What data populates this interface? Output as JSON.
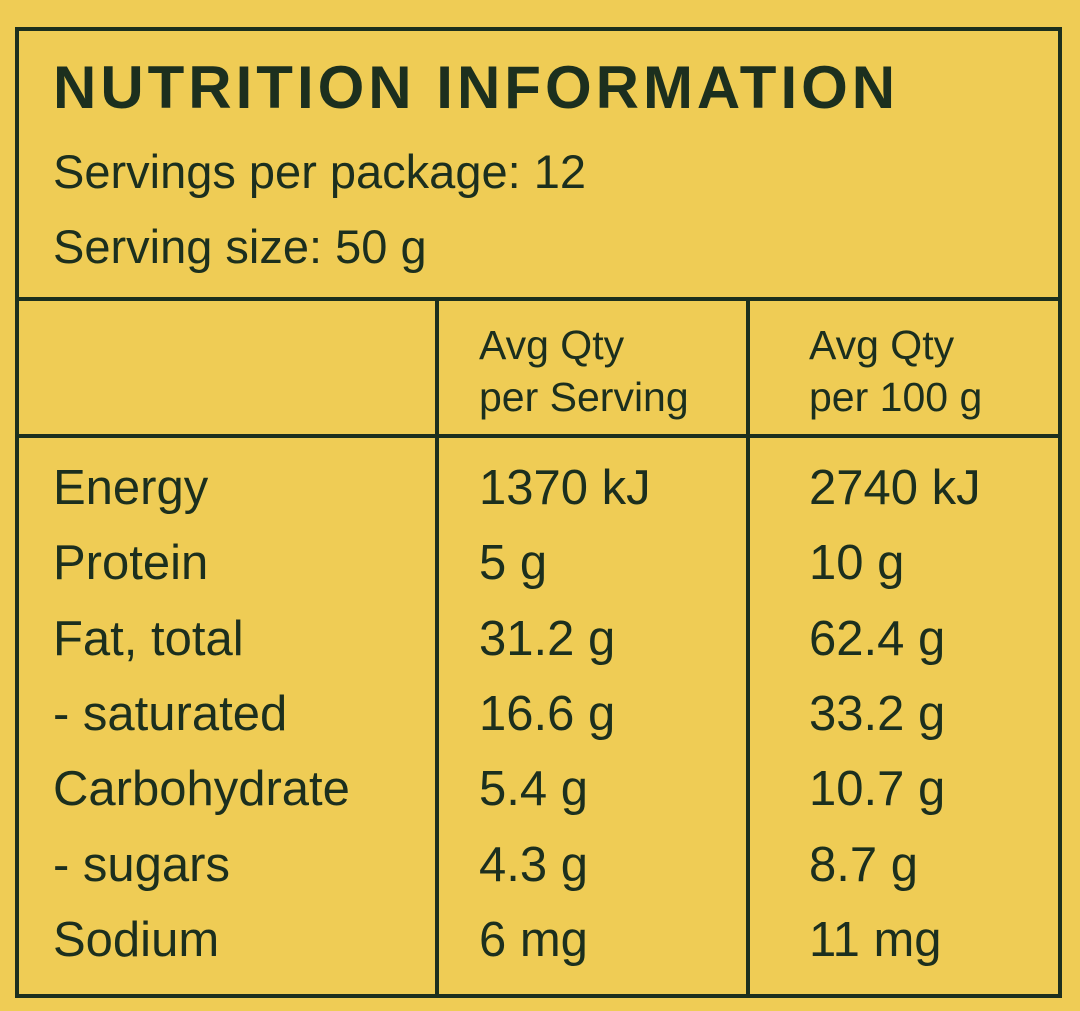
{
  "header": {
    "title": "NUTRITION INFORMATION",
    "servings": "Servings per package: 12",
    "serving_size": "Serving size: 50 g"
  },
  "table": {
    "columns": [
      [
        "Avg Qty",
        "per Serving"
      ],
      [
        "Avg Qty",
        "per 100 g"
      ]
    ],
    "rows": [
      [
        "Energy",
        "1370 kJ",
        "2740 kJ"
      ],
      [
        "Protein",
        "5 g",
        "10 g"
      ],
      [
        "Fat, total",
        "31.2 g",
        "62.4 g"
      ],
      [
        "- saturated",
        "16.6 g",
        "33.2 g"
      ],
      [
        "Carbohydrate",
        "5.4 g",
        "10.7 g"
      ],
      [
        "- sugars",
        "4.3 g",
        "8.7 g"
      ],
      [
        "Sodium",
        "6 mg",
        "11 mg"
      ]
    ]
  }
}
